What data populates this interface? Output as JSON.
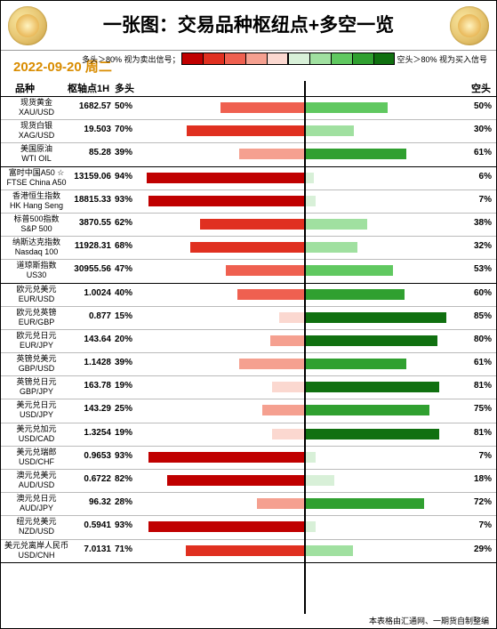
{
  "title": "一张图：交易品种枢纽点+多空一览",
  "date_text": "2022-09-20 周二",
  "date_color": "#d98c00",
  "footer": "本表格由汇通网、一期货自制整编",
  "legend": {
    "long_label": "多头＞80% 视为卖出信号；",
    "short_label": "空头＞80% 视为买入信号",
    "long_swatches": [
      "#c00000",
      "#e03020",
      "#ef6050",
      "#f5a090",
      "#fbd8d0"
    ],
    "short_swatches": [
      "#d8f0d8",
      "#a0e0a0",
      "#60c860",
      "#30a030",
      "#107010"
    ]
  },
  "columns": {
    "name": "品种",
    "pivot": "枢轴点1H",
    "long": "多头",
    "short": "空头"
  },
  "chart_half_width": 188,
  "groups": [
    {
      "rows": [
        {
          "name_cn": "现货黄金",
          "name_en": "XAU/USD",
          "pivot": "1682.57",
          "long": 50,
          "short": 50
        },
        {
          "name_cn": "现货白银",
          "name_en": "XAG/USD",
          "pivot": "19.503",
          "long": 70,
          "short": 30
        },
        {
          "name_cn": "美国原油",
          "name_en": "WTI OIL",
          "pivot": "85.28",
          "long": 39,
          "short": 61
        }
      ]
    },
    {
      "rows": [
        {
          "name_cn": "富时中国A50 ☆",
          "name_en": "FTSE China A50",
          "pivot": "13159.06",
          "long": 94,
          "short": 6
        },
        {
          "name_cn": "香港恒生指数",
          "name_en": "HK Hang Seng",
          "pivot": "18815.33",
          "long": 93,
          "short": 7
        },
        {
          "name_cn": "标普500指数",
          "name_en": "S&P 500",
          "pivot": "3870.55",
          "long": 62,
          "short": 38
        },
        {
          "name_cn": "纳斯达克指数",
          "name_en": "Nasdaq 100",
          "pivot": "11928.31",
          "long": 68,
          "short": 32
        },
        {
          "name_cn": "道琼斯指数",
          "name_en": "US30",
          "pivot": "30955.56",
          "long": 47,
          "short": 53
        }
      ]
    },
    {
      "rows": [
        {
          "name_cn": "欧元兑美元",
          "name_en": "EUR/USD",
          "pivot": "1.0024",
          "long": 40,
          "short": 60
        },
        {
          "name_cn": "欧元兑英镑",
          "name_en": "EUR/GBP",
          "pivot": "0.877",
          "long": 15,
          "short": 85
        },
        {
          "name_cn": "欧元兑日元",
          "name_en": "EUR/JPY",
          "pivot": "143.64",
          "long": 20,
          "short": 80
        },
        {
          "name_cn": "英镑兑美元",
          "name_en": "GBP/USD",
          "pivot": "1.1428",
          "long": 39,
          "short": 61
        },
        {
          "name_cn": "英镑兑日元",
          "name_en": "GBP/JPY",
          "pivot": "163.78",
          "long": 19,
          "short": 81
        },
        {
          "name_cn": "美元兑日元",
          "name_en": "USD/JPY",
          "pivot": "143.29",
          "long": 25,
          "short": 75
        },
        {
          "name_cn": "美元兑加元",
          "name_en": "USD/CAD",
          "pivot": "1.3254",
          "long": 19,
          "short": 81
        },
        {
          "name_cn": "美元兑瑞郎",
          "name_en": "USD/CHF",
          "pivot": "0.9653",
          "long": 93,
          "short": 7
        },
        {
          "name_cn": "澳元兑美元",
          "name_en": "AUD/USD",
          "pivot": "0.6722",
          "long": 82,
          "short": 18
        },
        {
          "name_cn": "澳元兑日元",
          "name_en": "AUD/JPY",
          "pivot": "96.32",
          "long": 28,
          "short": 72
        },
        {
          "name_cn": "纽元兑美元",
          "name_en": "NZD/USD",
          "pivot": "0.5941",
          "long": 93,
          "short": 7
        },
        {
          "name_cn": "美元兑离岸人民币",
          "name_en": "USD/CNH",
          "pivot": "7.0131",
          "long": 71,
          "short": 29
        }
      ]
    }
  ]
}
